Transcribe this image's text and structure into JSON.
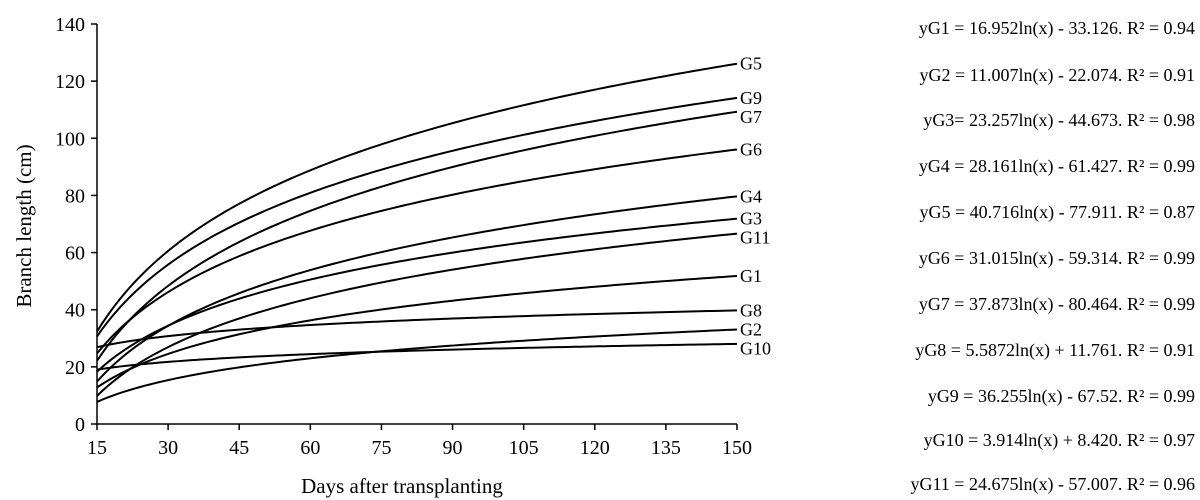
{
  "chart_data": {
    "type": "line",
    "xlabel": "Days after transplanting",
    "ylabel": "Branch length (cm)",
    "xlim": [
      15,
      150
    ],
    "ylim": [
      0,
      140
    ],
    "xticks": [
      "15",
      "30",
      "45",
      "60",
      "75",
      "90",
      "105",
      "120",
      "135",
      "150"
    ],
    "yticks": [
      "0",
      "20",
      "40",
      "60",
      "80",
      "100",
      "120",
      "140"
    ],
    "grid": false,
    "legend": "none",
    "series": [
      {
        "name": "G1",
        "a": 16.952,
        "b": -33.126
      },
      {
        "name": "G2",
        "a": 11.007,
        "b": -22.074
      },
      {
        "name": "G3",
        "a": 23.257,
        "b": -44.673
      },
      {
        "name": "G4",
        "a": 28.161,
        "b": -61.427
      },
      {
        "name": "G5",
        "a": 40.716,
        "b": -77.911
      },
      {
        "name": "G6",
        "a": 31.015,
        "b": -59.314
      },
      {
        "name": "G7",
        "a": 37.873,
        "b": -80.464
      },
      {
        "name": "G8",
        "a": 5.5872,
        "b": 11.761
      },
      {
        "name": "G9",
        "a": 36.255,
        "b": -67.52
      },
      {
        "name": "G10",
        "a": 3.914,
        "b": 8.42
      },
      {
        "name": "G11",
        "a": 24.675,
        "b": -57.007
      }
    ],
    "equations": [
      "yG1 = 16.952ln(x) - 33.126. R² = 0.94",
      "yG2 = 11.007ln(x) - 22.074. R² = 0.91",
      "yG3= 23.257ln(x) - 44.673. R² = 0.98",
      "yG4 = 28.161ln(x) - 61.427. R² = 0.99",
      "yG5 = 40.716ln(x) - 77.911. R² = 0.87",
      "yG6 = 31.015ln(x) - 59.314. R² = 0.99",
      "yG7 = 37.873ln(x) - 80.464. R² = 0.99",
      "yG8 = 5.5872ln(x) + 11.761. R² = 0.91",
      "yG9 = 36.255ln(x) - 67.52. R² = 0.99",
      "yG10 = 3.914ln(x) + 8.420. R² = 0.97",
      "yG11 = 24.675ln(x) - 57.007. R² = 0.96"
    ]
  }
}
